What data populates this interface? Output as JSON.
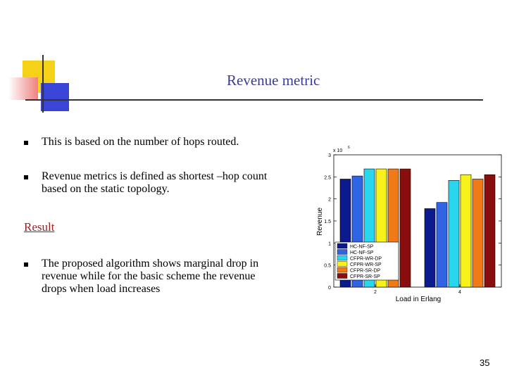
{
  "slide": {
    "title": "Revenue metric",
    "bullets": [
      "This is based on the number of hops routed.",
      "Revenue metrics is defined as shortest –hop count",
      "based on the static topology."
    ],
    "result_heading": "Result",
    "result_bullet": [
      "The proposed algorithm shows   marginal drop in",
      "revenue while for the basic scheme the revenue",
      "drops when load increases"
    ],
    "page_number": "35"
  },
  "chart_data": {
    "type": "bar",
    "ylabel": "Revenue",
    "xlabel": "Load in Erlang",
    "y_multiplier": "x 10",
    "y_multiplier_exp": "6",
    "ylim": [
      0,
      3
    ],
    "yticks": [
      "0",
      "0.5",
      "1",
      "1.5",
      "2",
      "2.5",
      "3"
    ],
    "xticks": [
      "2",
      "4"
    ],
    "grid": false,
    "legend_position": "lower-left",
    "categories": [
      "2",
      "4"
    ],
    "series": [
      {
        "name": "HC-NF-SP",
        "color": "#0b1a8c",
        "values": [
          2.45,
          1.78
        ]
      },
      {
        "name": "HC-NF-SP",
        "color": "#2f64e6",
        "values": [
          2.52,
          1.92
        ]
      },
      {
        "name": "CFPR-WR-DP",
        "color": "#28d7ee",
        "values": [
          2.68,
          2.42
        ]
      },
      {
        "name": "CFPR-WR-SP",
        "color": "#f7f21a",
        "values": [
          2.68,
          2.55
        ]
      },
      {
        "name": "CFPR-SR-DP",
        "color": "#f07a18",
        "values": [
          2.68,
          2.45
        ]
      },
      {
        "name": "CFPR-SR-SP",
        "color": "#8a0d0d",
        "values": [
          2.68,
          2.55
        ]
      }
    ]
  }
}
